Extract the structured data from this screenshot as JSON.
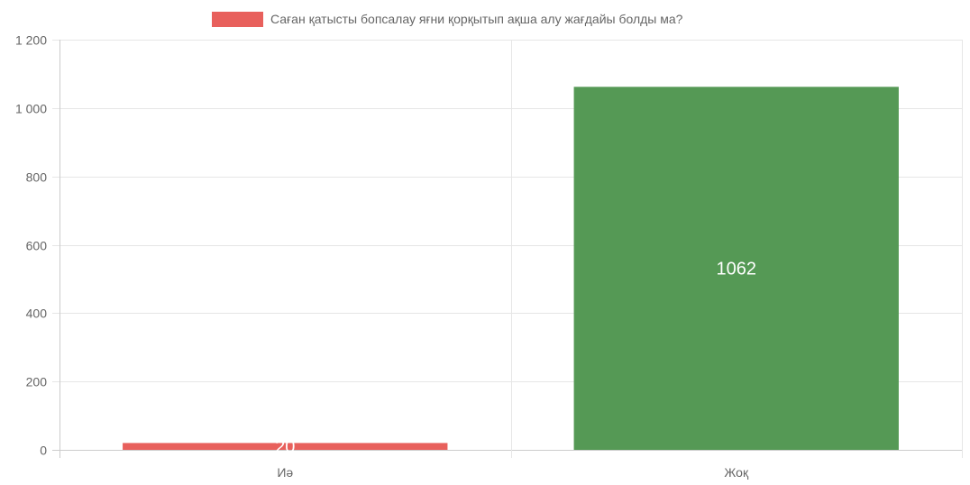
{
  "chart_data": {
    "type": "bar",
    "categories": [
      "Иә",
      "Жоқ"
    ],
    "series": [
      {
        "name": "Саған қатысты бопсалау яғни қорқытып ақша алу жағдайы болды ма?",
        "values": [
          20,
          1062
        ],
        "colors": [
          "#e8605c",
          "#559955"
        ]
      }
    ],
    "data_labels": [
      "20",
      "1062"
    ],
    "y_ticks": [
      0,
      200,
      400,
      600,
      800,
      1000,
      1200
    ],
    "y_tick_labels": [
      "0",
      "200",
      "400",
      "600",
      "800",
      "1 000",
      "1 200"
    ],
    "ylim": [
      0,
      1200
    ],
    "grid": true,
    "legend_position": "top",
    "legend_color": "#e8605c"
  }
}
